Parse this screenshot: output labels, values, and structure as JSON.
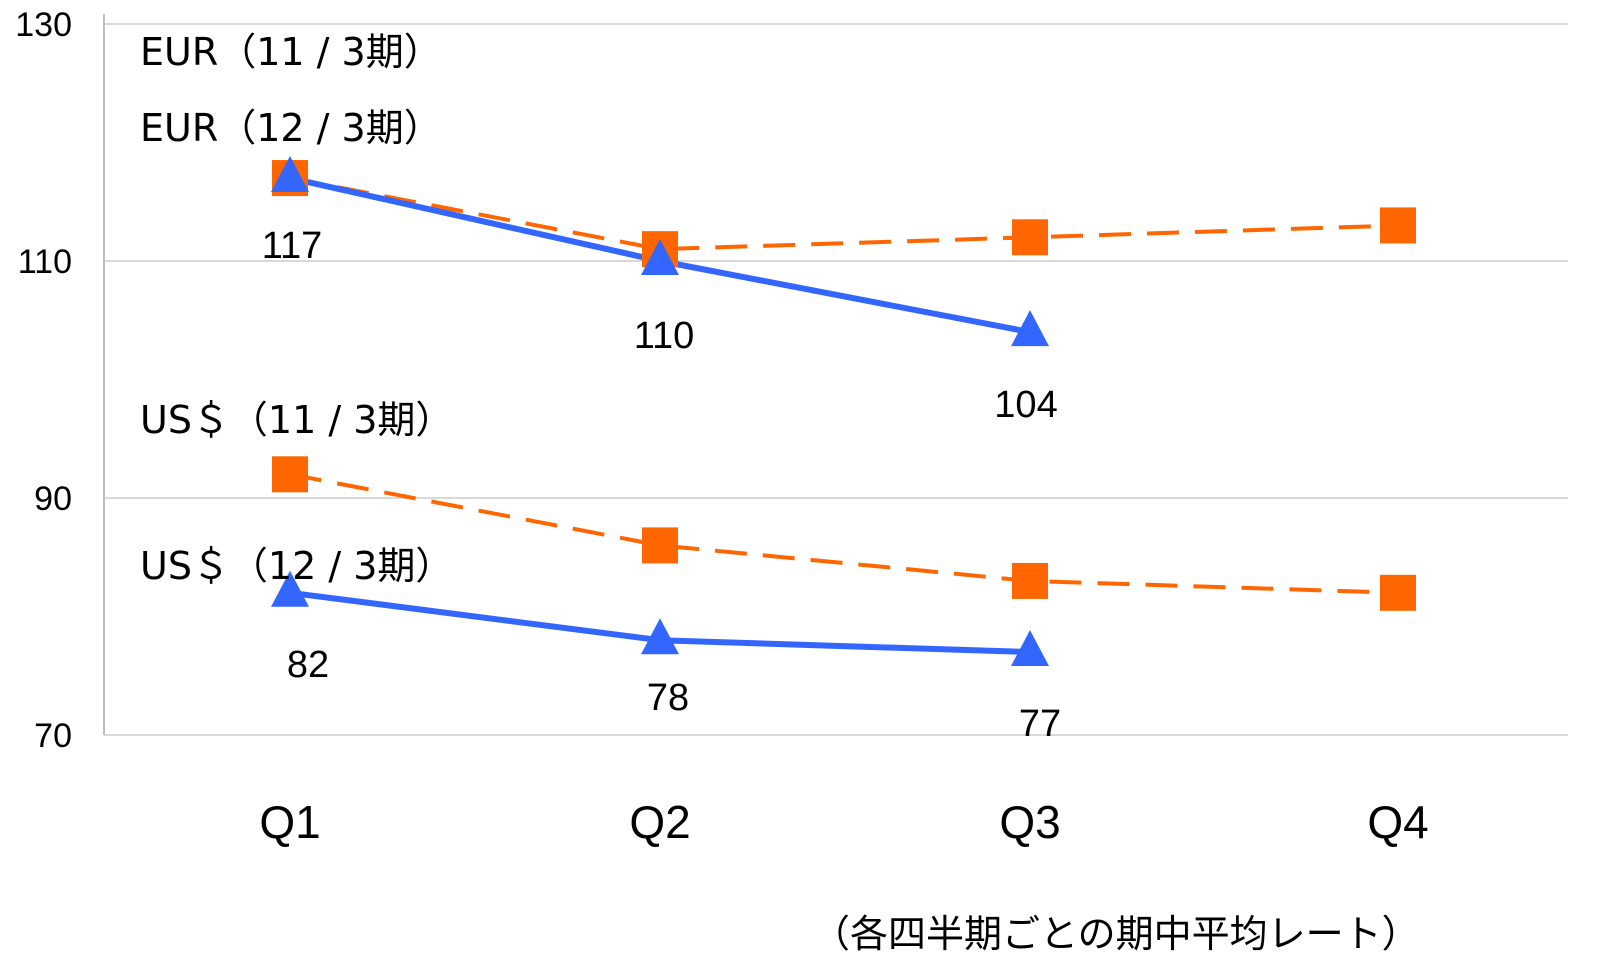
{
  "chart_data": {
    "type": "line",
    "categories": [
      "Q1",
      "Q2",
      "Q3",
      "Q4"
    ],
    "ylim": [
      70,
      130
    ],
    "yticks": [
      70,
      90,
      110,
      130
    ],
    "grid": true,
    "note": "（各四半期ごとの期中平均レート）",
    "series": [
      {
        "name": "EUR（11 / 3期）",
        "values": [
          117,
          111,
          112,
          113
        ],
        "color": "#ff6600",
        "style": "dashed",
        "marker": "square",
        "data_labels": [
          "",
          "",
          "",
          ""
        ]
      },
      {
        "name": "EUR（12 / 3期）",
        "values": [
          117,
          110,
          104,
          null
        ],
        "color": "#3366ff",
        "style": "solid",
        "marker": "triangle",
        "data_labels": [
          "117",
          "110",
          "104",
          ""
        ]
      },
      {
        "name": "US＄（11 / 3期）",
        "values": [
          92,
          86,
          83,
          82
        ],
        "color": "#ff6600",
        "style": "dashed",
        "marker": "square",
        "data_labels": [
          "",
          "",
          "",
          ""
        ]
      },
      {
        "name": "US＄（12 / 3期）",
        "values": [
          82,
          78,
          77,
          null
        ],
        "color": "#3366ff",
        "style": "solid",
        "marker": "triangle",
        "data_labels": [
          "82",
          "78",
          "77",
          ""
        ]
      }
    ]
  }
}
